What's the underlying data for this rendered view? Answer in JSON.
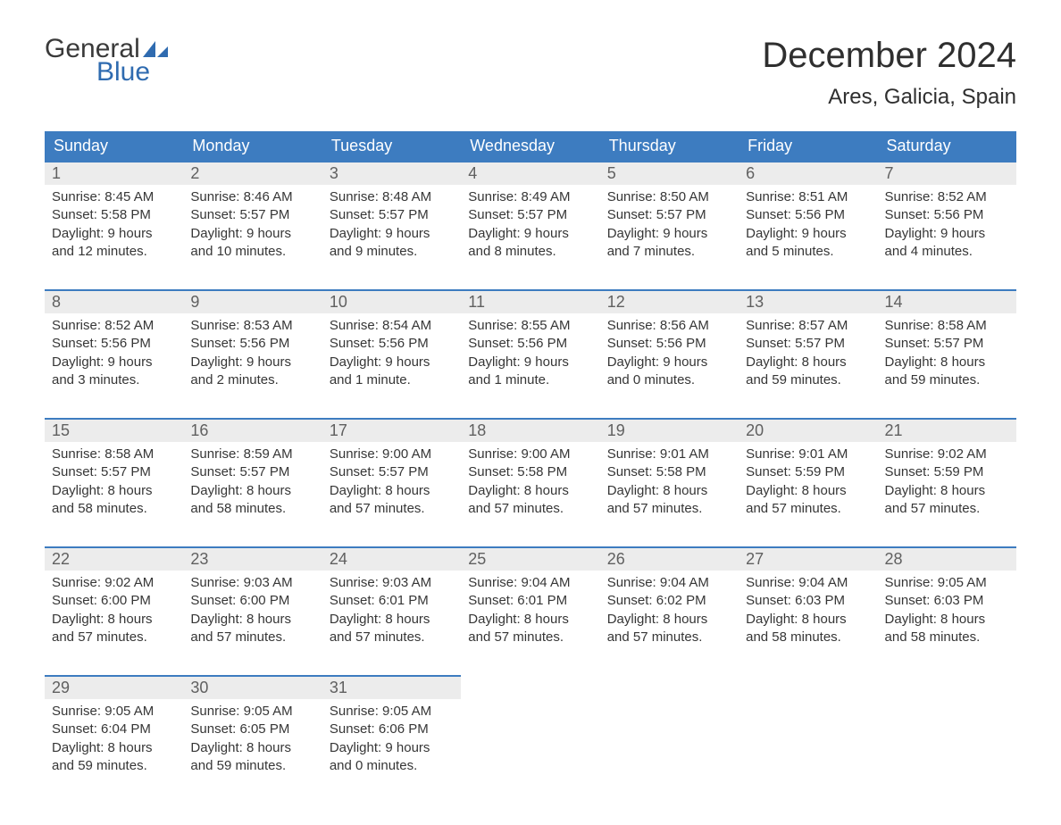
{
  "logo": {
    "top": "General",
    "bottom": "Blue"
  },
  "title": "December 2024",
  "location": "Ares, Galicia, Spain",
  "day_headers": [
    "Sunday",
    "Monday",
    "Tuesday",
    "Wednesday",
    "Thursday",
    "Friday",
    "Saturday"
  ],
  "colors": {
    "header_bg": "#3d7cc0",
    "header_fg": "#ffffff",
    "daynum_bg": "#ececec",
    "daynum_border": "#3d7cc0",
    "text": "#363636",
    "logo_gray": "#3a3a3a",
    "logo_blue": "#2f6bb0"
  },
  "weeks": [
    [
      {
        "n": "1",
        "sunrise": "8:45 AM",
        "sunset": "5:58 PM",
        "d1": "Daylight: 9 hours",
        "d2": "and 12 minutes."
      },
      {
        "n": "2",
        "sunrise": "8:46 AM",
        "sunset": "5:57 PM",
        "d1": "Daylight: 9 hours",
        "d2": "and 10 minutes."
      },
      {
        "n": "3",
        "sunrise": "8:48 AM",
        "sunset": "5:57 PM",
        "d1": "Daylight: 9 hours",
        "d2": "and 9 minutes."
      },
      {
        "n": "4",
        "sunrise": "8:49 AM",
        "sunset": "5:57 PM",
        "d1": "Daylight: 9 hours",
        "d2": "and 8 minutes."
      },
      {
        "n": "5",
        "sunrise": "8:50 AM",
        "sunset": "5:57 PM",
        "d1": "Daylight: 9 hours",
        "d2": "and 7 minutes."
      },
      {
        "n": "6",
        "sunrise": "8:51 AM",
        "sunset": "5:56 PM",
        "d1": "Daylight: 9 hours",
        "d2": "and 5 minutes."
      },
      {
        "n": "7",
        "sunrise": "8:52 AM",
        "sunset": "5:56 PM",
        "d1": "Daylight: 9 hours",
        "d2": "and 4 minutes."
      }
    ],
    [
      {
        "n": "8",
        "sunrise": "8:52 AM",
        "sunset": "5:56 PM",
        "d1": "Daylight: 9 hours",
        "d2": "and 3 minutes."
      },
      {
        "n": "9",
        "sunrise": "8:53 AM",
        "sunset": "5:56 PM",
        "d1": "Daylight: 9 hours",
        "d2": "and 2 minutes."
      },
      {
        "n": "10",
        "sunrise": "8:54 AM",
        "sunset": "5:56 PM",
        "d1": "Daylight: 9 hours",
        "d2": "and 1 minute."
      },
      {
        "n": "11",
        "sunrise": "8:55 AM",
        "sunset": "5:56 PM",
        "d1": "Daylight: 9 hours",
        "d2": "and 1 minute."
      },
      {
        "n": "12",
        "sunrise": "8:56 AM",
        "sunset": "5:56 PM",
        "d1": "Daylight: 9 hours",
        "d2": "and 0 minutes."
      },
      {
        "n": "13",
        "sunrise": "8:57 AM",
        "sunset": "5:57 PM",
        "d1": "Daylight: 8 hours",
        "d2": "and 59 minutes."
      },
      {
        "n": "14",
        "sunrise": "8:58 AM",
        "sunset": "5:57 PM",
        "d1": "Daylight: 8 hours",
        "d2": "and 59 minutes."
      }
    ],
    [
      {
        "n": "15",
        "sunrise": "8:58 AM",
        "sunset": "5:57 PM",
        "d1": "Daylight: 8 hours",
        "d2": "and 58 minutes."
      },
      {
        "n": "16",
        "sunrise": "8:59 AM",
        "sunset": "5:57 PM",
        "d1": "Daylight: 8 hours",
        "d2": "and 58 minutes."
      },
      {
        "n": "17",
        "sunrise": "9:00 AM",
        "sunset": "5:57 PM",
        "d1": "Daylight: 8 hours",
        "d2": "and 57 minutes."
      },
      {
        "n": "18",
        "sunrise": "9:00 AM",
        "sunset": "5:58 PM",
        "d1": "Daylight: 8 hours",
        "d2": "and 57 minutes."
      },
      {
        "n": "19",
        "sunrise": "9:01 AM",
        "sunset": "5:58 PM",
        "d1": "Daylight: 8 hours",
        "d2": "and 57 minutes."
      },
      {
        "n": "20",
        "sunrise": "9:01 AM",
        "sunset": "5:59 PM",
        "d1": "Daylight: 8 hours",
        "d2": "and 57 minutes."
      },
      {
        "n": "21",
        "sunrise": "9:02 AM",
        "sunset": "5:59 PM",
        "d1": "Daylight: 8 hours",
        "d2": "and 57 minutes."
      }
    ],
    [
      {
        "n": "22",
        "sunrise": "9:02 AM",
        "sunset": "6:00 PM",
        "d1": "Daylight: 8 hours",
        "d2": "and 57 minutes."
      },
      {
        "n": "23",
        "sunrise": "9:03 AM",
        "sunset": "6:00 PM",
        "d1": "Daylight: 8 hours",
        "d2": "and 57 minutes."
      },
      {
        "n": "24",
        "sunrise": "9:03 AM",
        "sunset": "6:01 PM",
        "d1": "Daylight: 8 hours",
        "d2": "and 57 minutes."
      },
      {
        "n": "25",
        "sunrise": "9:04 AM",
        "sunset": "6:01 PM",
        "d1": "Daylight: 8 hours",
        "d2": "and 57 minutes."
      },
      {
        "n": "26",
        "sunrise": "9:04 AM",
        "sunset": "6:02 PM",
        "d1": "Daylight: 8 hours",
        "d2": "and 57 minutes."
      },
      {
        "n": "27",
        "sunrise": "9:04 AM",
        "sunset": "6:03 PM",
        "d1": "Daylight: 8 hours",
        "d2": "and 58 minutes."
      },
      {
        "n": "28",
        "sunrise": "9:05 AM",
        "sunset": "6:03 PM",
        "d1": "Daylight: 8 hours",
        "d2": "and 58 minutes."
      }
    ],
    [
      {
        "n": "29",
        "sunrise": "9:05 AM",
        "sunset": "6:04 PM",
        "d1": "Daylight: 8 hours",
        "d2": "and 59 minutes."
      },
      {
        "n": "30",
        "sunrise": "9:05 AM",
        "sunset": "6:05 PM",
        "d1": "Daylight: 8 hours",
        "d2": "and 59 minutes."
      },
      {
        "n": "31",
        "sunrise": "9:05 AM",
        "sunset": "6:06 PM",
        "d1": "Daylight: 9 hours",
        "d2": "and 0 minutes."
      },
      null,
      null,
      null,
      null
    ]
  ],
  "labels": {
    "sunrise_prefix": "Sunrise: ",
    "sunset_prefix": "Sunset: "
  }
}
